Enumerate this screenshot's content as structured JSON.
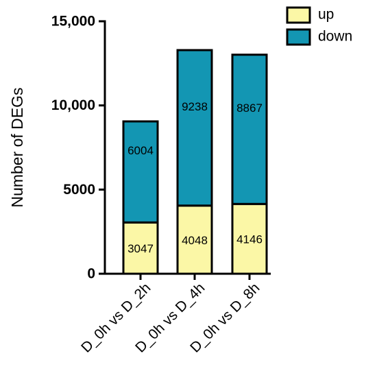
{
  "chart_data": {
    "type": "stacked-bar",
    "y_label": "Number of  DEGs",
    "categories": [
      "D_0h vs D_2h",
      "D_0h vs D_4h",
      "D_0h vs D_8h"
    ],
    "series": [
      {
        "name": "up",
        "color": "#fbf7a6",
        "values": [
          3047,
          4048,
          4146
        ]
      },
      {
        "name": "down",
        "color": "#1396b3",
        "values": [
          6004,
          9238,
          8867
        ]
      }
    ],
    "ylim": [
      0,
      15000
    ],
    "yticks": [
      0,
      5000,
      {
        "value": 10000,
        "label": "10,000"
      },
      {
        "value": 15000,
        "label": "15,000"
      }
    ],
    "legend": "top-right"
  }
}
